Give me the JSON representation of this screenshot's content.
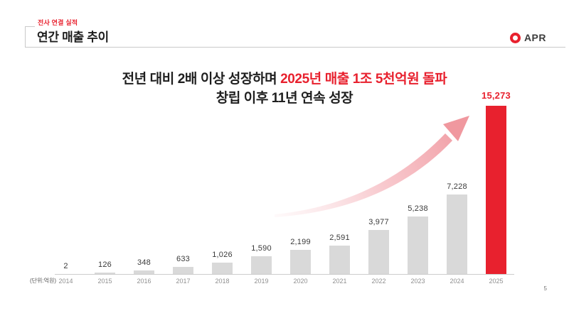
{
  "header": {
    "eyebrow": "전사 연결 실적",
    "title": "연간 매출 추이",
    "logo_text": "APR"
  },
  "headline": {
    "line1_black": "전년 대비 2배 이상 성장하며 ",
    "line1_red": "2025년 매출 1조 5천억원 돌파",
    "line2": "창립 이후 11년 연속 성장"
  },
  "chart_data": {
    "type": "bar",
    "title": "연간 매출 추이",
    "unit_label": "(단위:억원)",
    "categories": [
      "2014",
      "2015",
      "2016",
      "2017",
      "2018",
      "2019",
      "2020",
      "2021",
      "2022",
      "2023",
      "2024",
      "2025"
    ],
    "values": [
      2,
      126,
      348,
      633,
      1026,
      1590,
      2199,
      2591,
      3977,
      5238,
      7228,
      15273
    ],
    "highlight_index": 11,
    "ylim": [
      0,
      15273
    ],
    "grid": false,
    "legend": false,
    "bar_color": "#d9d9d9",
    "highlight_color": "#e8212e",
    "annotation": "growth-arrow"
  },
  "footer": {
    "page_number": "5"
  },
  "colors": {
    "brand_red": "#e8212e",
    "bar_gray": "#d9d9d9",
    "arrow_pink": "#f09aa2",
    "divider_gray": "#c9c9c9",
    "text_dark": "#1f1f1f"
  }
}
